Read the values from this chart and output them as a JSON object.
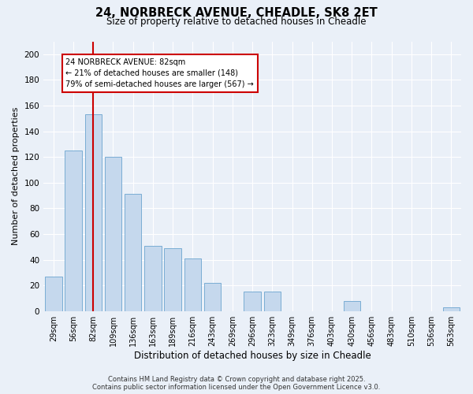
{
  "title_line1": "24, NORBRECK AVENUE, CHEADLE, SK8 2ET",
  "title_line2": "Size of property relative to detached houses in Cheadle",
  "xlabel": "Distribution of detached houses by size in Cheadle",
  "ylabel": "Number of detached properties",
  "categories": [
    "29sqm",
    "56sqm",
    "82sqm",
    "109sqm",
    "136sqm",
    "163sqm",
    "189sqm",
    "216sqm",
    "243sqm",
    "269sqm",
    "296sqm",
    "323sqm",
    "349sqm",
    "376sqm",
    "403sqm",
    "430sqm",
    "456sqm",
    "483sqm",
    "510sqm",
    "536sqm",
    "563sqm"
  ],
  "values": [
    27,
    125,
    153,
    120,
    91,
    51,
    49,
    41,
    22,
    0,
    15,
    15,
    0,
    0,
    0,
    8,
    0,
    0,
    0,
    0,
    3
  ],
  "bar_color": "#c5d8ed",
  "bar_edge_color": "#7aadd4",
  "highlight_bar_index": 2,
  "highlight_line_color": "#cc0000",
  "annotation_text": "24 NORBRECK AVENUE: 82sqm\n← 21% of detached houses are smaller (148)\n79% of semi-detached houses are larger (567) →",
  "annotation_box_color": "#ffffff",
  "annotation_box_edge_color": "#cc0000",
  "ylim": [
    0,
    210
  ],
  "yticks": [
    0,
    20,
    40,
    60,
    80,
    100,
    120,
    140,
    160,
    180,
    200
  ],
  "background_color": "#eaf0f8",
  "grid_color": "#ffffff",
  "footer_line1": "Contains HM Land Registry data © Crown copyright and database right 2025.",
  "footer_line2": "Contains public sector information licensed under the Open Government Licence v3.0."
}
